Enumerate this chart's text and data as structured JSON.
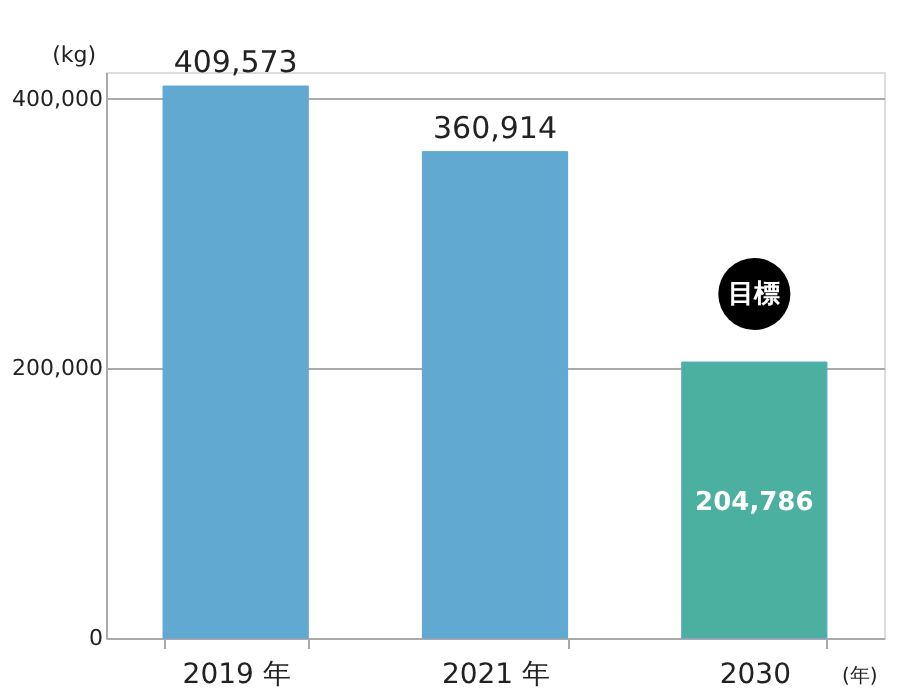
{
  "chart_data": {
    "type": "bar",
    "ylabel": "(kg)",
    "xlabel": "(年)",
    "categories": [
      "2019 年",
      "2021 年",
      "2030"
    ],
    "values": [
      409573,
      360914,
      204786
    ],
    "colors": [
      "#62a9d1",
      "#62a9d1",
      "#4bb09f"
    ],
    "ylim": [
      0,
      420000
    ],
    "yticks": [
      0,
      {
        "value": 200000,
        "label": "200,000"
      },
      {
        "value": 400000,
        "label": "400,000"
      }
    ],
    "grid": "y",
    "value_labels": [
      "409,573",
      "360,914",
      "204,786"
    ],
    "annotations": [
      {
        "text": "目標",
        "x": "2030",
        "y": 204786
      }
    ]
  }
}
